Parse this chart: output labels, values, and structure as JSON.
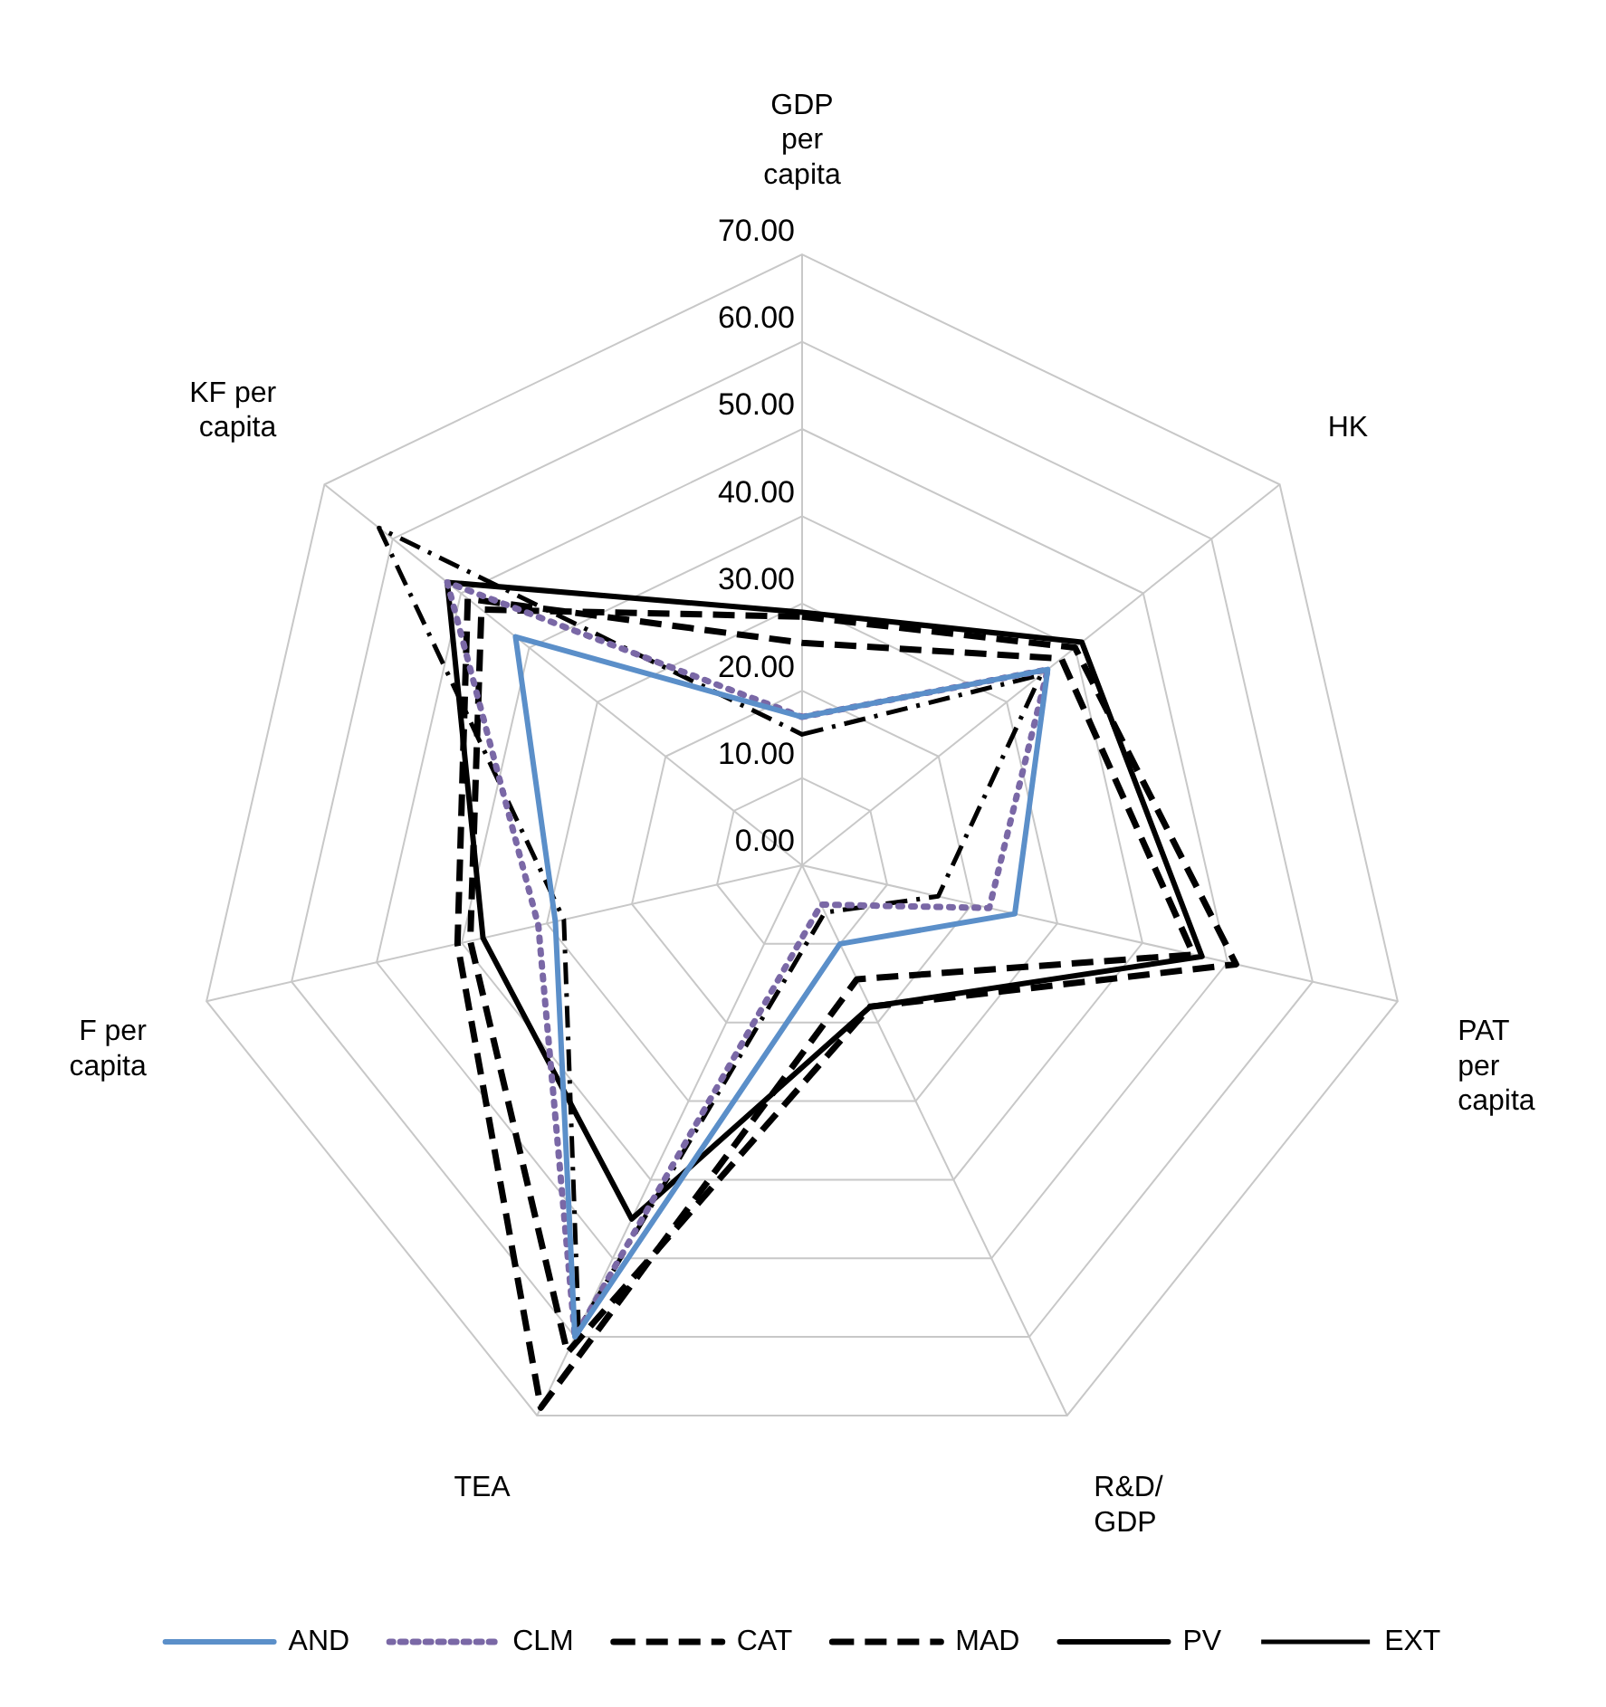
{
  "chart_data": {
    "type": "radar",
    "categories": [
      "GDP per capita",
      "HK",
      "PAT per capita",
      "R&D/GDP",
      "TEA",
      "F per capita",
      "KF per capita"
    ],
    "series": [
      {
        "name": "AND",
        "color": "#5b8fc9",
        "line_style": "solid",
        "values": [
          17,
          36,
          25,
          10,
          60,
          29,
          42
        ]
      },
      {
        "name": "CLM",
        "color": "#7a68a6",
        "line_style": "dotted",
        "values": [
          17,
          36,
          22,
          5,
          60,
          31,
          52
        ]
      },
      {
        "name": "CAT",
        "color": "#000000",
        "line_style": "dashed",
        "values": [
          25.5,
          38,
          46,
          14.5,
          69,
          40.5,
          49
        ]
      },
      {
        "name": "MAD",
        "color": "#000000",
        "line_style": "dashed",
        "values": [
          28.5,
          40,
          51,
          18,
          62,
          39,
          47
        ]
      },
      {
        "name": "PV",
        "color": "#000000",
        "line_style": "solid",
        "values": [
          29,
          41,
          47,
          18,
          45,
          37.5,
          52
        ]
      },
      {
        "name": "EXT",
        "color": "#000000",
        "line_style": "dashdot",
        "values": [
          15,
          35,
          16,
          6,
          59,
          28,
          62
        ]
      }
    ],
    "ylim": [
      0,
      70
    ],
    "yticks": [
      {
        "value": 0,
        "label": "0.00"
      },
      {
        "value": 10,
        "label": "10.00"
      },
      {
        "value": 20,
        "label": "20.00"
      },
      {
        "value": 30,
        "label": "30.00"
      },
      {
        "value": 40,
        "label": "40.00"
      },
      {
        "value": 50,
        "label": "50.00"
      },
      {
        "value": 60,
        "label": "60.00"
      },
      {
        "value": 70,
        "label": "70.00"
      }
    ],
    "grid": true,
    "legend": "bottom",
    "marker": "none"
  }
}
